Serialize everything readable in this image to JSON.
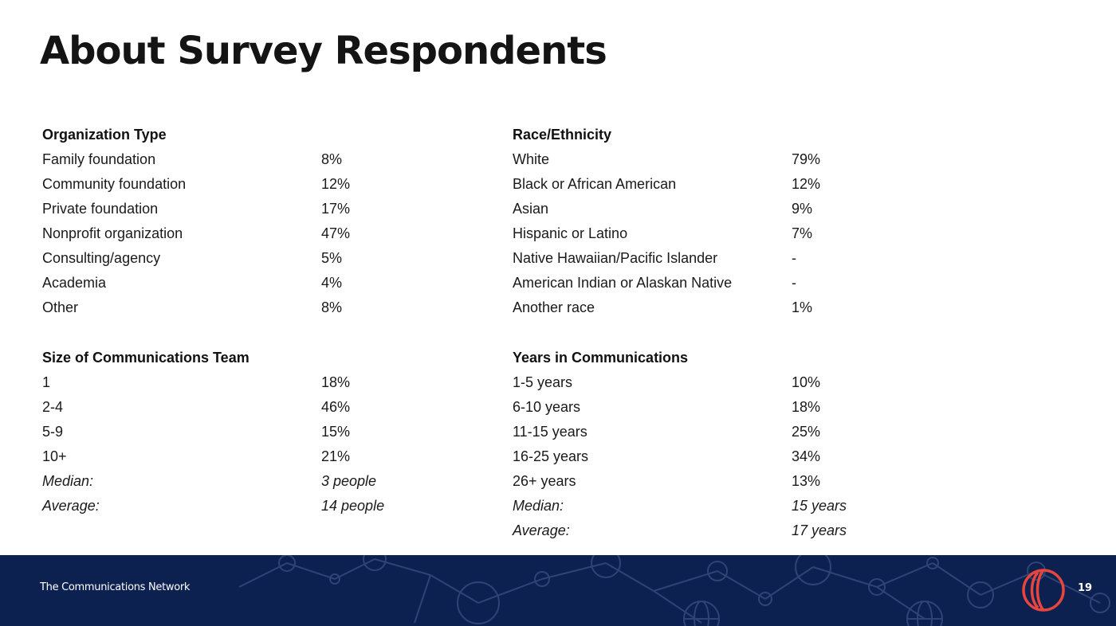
{
  "page": {
    "title": "About Survey Respondents",
    "footer_text": "The Communications Network",
    "page_number": "19",
    "brand_colors": {
      "footer_bg": "#0c2150",
      "logo": "#e8453c"
    },
    "logo_icon": "communications-network-logo-icon"
  },
  "sections": {
    "org": {
      "heading": "Organization Type",
      "rows": [
        {
          "label": "Family foundation",
          "value": "8%"
        },
        {
          "label": "Community foundation",
          "value": "12%"
        },
        {
          "label": "Private foundation",
          "value": "17%"
        },
        {
          "label": "Nonprofit organization",
          "value": "47%"
        },
        {
          "label": "Consulting/agency",
          "value": "5%"
        },
        {
          "label": "Academia",
          "value": "4%"
        },
        {
          "label": "Other",
          "value": "8%"
        }
      ]
    },
    "race": {
      "heading": "Race/Ethnicity",
      "rows": [
        {
          "label": "White",
          "value": "79%"
        },
        {
          "label": "Black or African American",
          "value": "12%"
        },
        {
          "label": "Asian",
          "value": "9%"
        },
        {
          "label": "Hispanic or Latino",
          "value": "7%"
        },
        {
          "label": "Native Hawaiian/Pacific Islander",
          "value": "-"
        },
        {
          "label": "American Indian or Alaskan Native",
          "value": "-"
        },
        {
          "label": "Another race",
          "value": "1%"
        }
      ]
    },
    "team": {
      "heading": "Size of Communications Team",
      "rows": [
        {
          "label": "1",
          "value": "18%"
        },
        {
          "label": "2-4",
          "value": "46%"
        },
        {
          "label": "5-9",
          "value": "15%"
        },
        {
          "label": "10+",
          "value": "21%"
        },
        {
          "label": "Median:",
          "value": "3 people"
        },
        {
          "label": "Average:",
          "value": "14 people"
        }
      ]
    },
    "years": {
      "heading": "Years in Communications",
      "rows": [
        {
          "label": "1-5 years",
          "value": "10%"
        },
        {
          "label": "6-10 years",
          "value": "18%"
        },
        {
          "label": "11-15 years",
          "value": "25%"
        },
        {
          "label": "16-25 years",
          "value": "34%"
        },
        {
          "label": "26+ years",
          "value": "13%"
        },
        {
          "label": "Median:",
          "value": "15 years"
        },
        {
          "label": "Average:",
          "value": "17 years"
        }
      ]
    }
  }
}
